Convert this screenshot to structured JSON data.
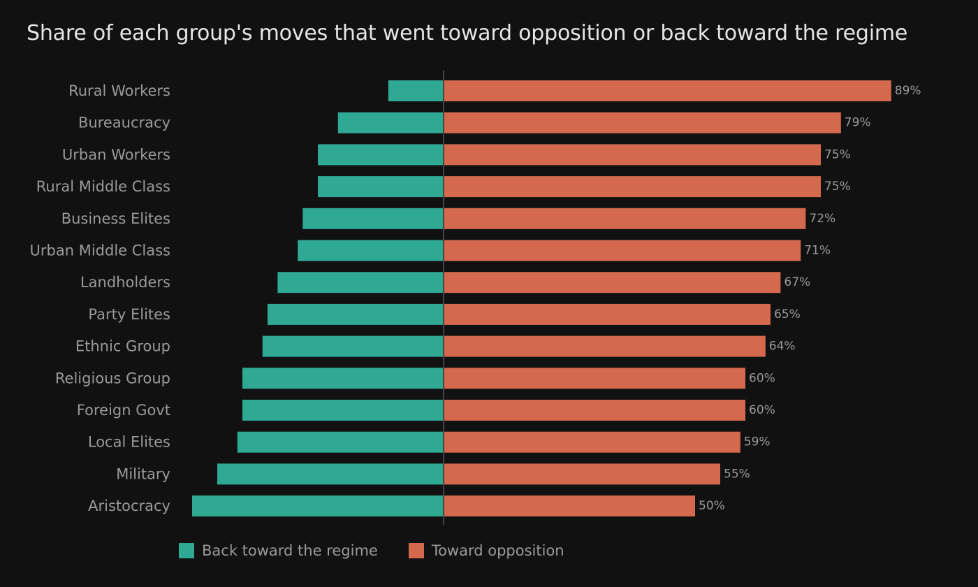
{
  "chart_data": {
    "type": "bar",
    "orientation": "horizontal-diverging",
    "title": "Share of each group's moves that went toward opposition or back toward the regime",
    "xlabel": "",
    "ylabel": "",
    "value_unit": "%",
    "xlim": [
      -50,
      100
    ],
    "grid": false,
    "legend_position": "bottom",
    "categories": [
      "Rural Workers",
      "Bureaucracy",
      "Urban Workers",
      "Rural Middle Class",
      "Business Elites",
      "Urban Middle Class",
      "Landholders",
      "Party Elites",
      "Ethnic Group",
      "Religious Group",
      "Foreign Govt",
      "Local Elites",
      "Military",
      "Aristocracy"
    ],
    "series": [
      {
        "name": "Back toward the regime",
        "color": "#2fa994",
        "direction": "left",
        "values": [
          11,
          21,
          25,
          25,
          28,
          29,
          33,
          35,
          36,
          40,
          40,
          41,
          45,
          50
        ],
        "labels_shown": false
      },
      {
        "name": "Toward opposition",
        "color": "#d4694d",
        "direction": "right",
        "values": [
          89,
          79,
          75,
          75,
          72,
          71,
          67,
          65,
          64,
          60,
          60,
          59,
          55,
          50
        ],
        "labels_shown": true
      }
    ]
  },
  "colors": {
    "background": "#111111",
    "title": "#e6e6e6",
    "text": "#9a9a9a",
    "baseline": "#444444"
  }
}
